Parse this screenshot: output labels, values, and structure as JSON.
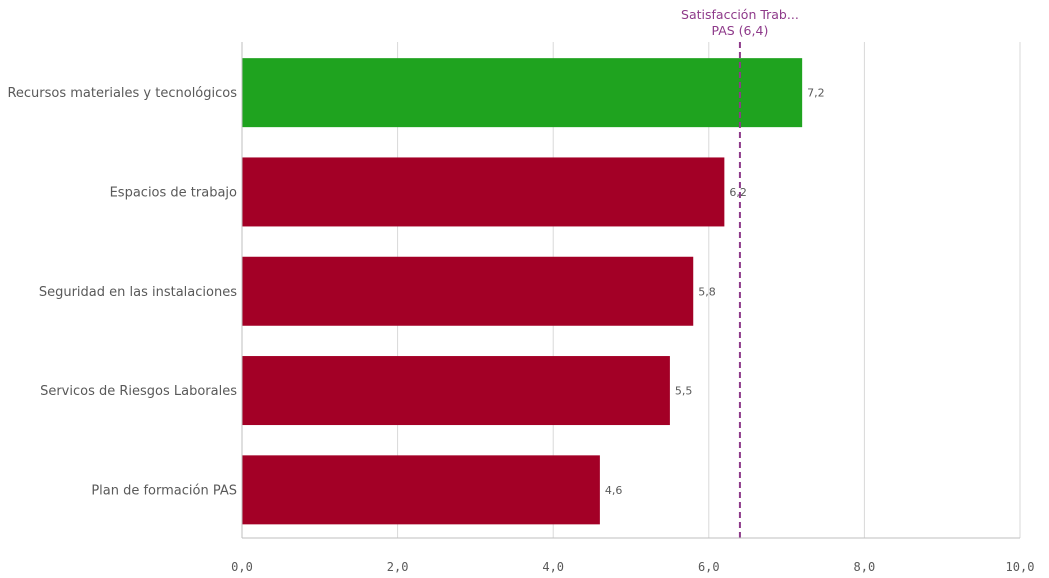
{
  "colors": {
    "above_reference": "#1fa31f",
    "below_reference": "#a30026",
    "reference_line": "#8e3a8a",
    "grid": "#d9d9d9",
    "axis": "#bfbfbf",
    "text": "#595959"
  },
  "chart_data": {
    "type": "bar",
    "orientation": "horizontal",
    "categories": [
      "Recursos materiales y tecnológicos",
      "Espacios de trabajo",
      "Seguridad en las instalaciones",
      "Servicos de Riesgos Laborales",
      "Plan de formación PAS"
    ],
    "values": [
      7.2,
      6.2,
      5.8,
      5.5,
      4.6
    ],
    "value_labels": [
      "7,2",
      "6,2",
      "5,8",
      "5,5",
      "4,6"
    ],
    "xlim": [
      0,
      10
    ],
    "x_ticks": [
      0,
      2,
      4,
      6,
      8,
      10
    ],
    "x_tick_labels": [
      "0,0",
      "2,0",
      "4,0",
      "6,0",
      "8,0",
      "10,0"
    ],
    "grid": true,
    "reference_line": {
      "value": 6.4,
      "label_line1": "Satisfacción Trab...",
      "label_line2": "PAS (6,4)"
    }
  }
}
